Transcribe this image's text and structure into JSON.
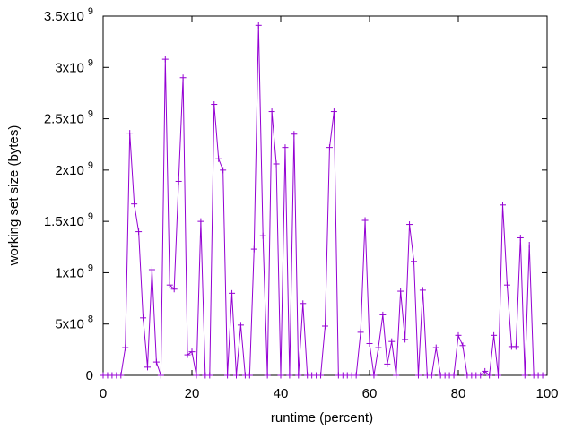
{
  "chart_data": {
    "type": "line",
    "title": "",
    "xlabel": "runtime (percent)",
    "ylabel": "working set size (bytes)",
    "xlim": [
      0,
      100
    ],
    "ylim": [
      0,
      3500000000
    ],
    "grid": false,
    "legend": "none",
    "colors": {
      "series": "#9400d3",
      "axes": "#000000"
    },
    "x_ticks": [
      {
        "value": 0,
        "label": "0"
      },
      {
        "value": 20,
        "label": "20"
      },
      {
        "value": 40,
        "label": "40"
      },
      {
        "value": 60,
        "label": "60"
      },
      {
        "value": 80,
        "label": "80"
      },
      {
        "value": 100,
        "label": "100"
      }
    ],
    "y_ticks": [
      {
        "value": 0,
        "base": "0",
        "exp": ""
      },
      {
        "value": 500000000,
        "base": "5x10",
        "exp": "8"
      },
      {
        "value": 1000000000,
        "base": "1x10",
        "exp": "9"
      },
      {
        "value": 1500000000,
        "base": "1.5x10",
        "exp": "9"
      },
      {
        "value": 2000000000,
        "base": "2x10",
        "exp": "9"
      },
      {
        "value": 2500000000,
        "base": "2.5x10",
        "exp": "9"
      },
      {
        "value": 3000000000,
        "base": "3x10",
        "exp": "9"
      },
      {
        "value": 3500000000,
        "base": "3.5x10",
        "exp": "9"
      }
    ],
    "series": [
      {
        "x": [
          0,
          1,
          2,
          3,
          4,
          5,
          6,
          7,
          8,
          9,
          10,
          11,
          12,
          13,
          14,
          15,
          16,
          17,
          18,
          19,
          20,
          21,
          22,
          23,
          24,
          25,
          26,
          27,
          28,
          29,
          30,
          31,
          32,
          33,
          34,
          35,
          36,
          37,
          38,
          39,
          40,
          41,
          42,
          43,
          44,
          45,
          46,
          47,
          48,
          49,
          50,
          51,
          52,
          53,
          54,
          55,
          56,
          57,
          58,
          59,
          60,
          61,
          62,
          63,
          64,
          65,
          66,
          67,
          68,
          69,
          70,
          71,
          72,
          73,
          74,
          75,
          76,
          77,
          78,
          79,
          80,
          81,
          82,
          83,
          84,
          85,
          86,
          87,
          88,
          89,
          90,
          91,
          92,
          93,
          94,
          95,
          96,
          97,
          98,
          99
        ],
        "values": [
          0,
          0,
          0,
          0,
          0,
          270000000,
          2360000000,
          1670000000,
          1400000000,
          560000000,
          80000000,
          1030000000,
          130000000,
          0,
          3080000000,
          880000000,
          840000000,
          1890000000,
          2900000000,
          200000000,
          230000000,
          0,
          1500000000,
          0,
          0,
          2640000000,
          2110000000,
          2000000000,
          0,
          800000000,
          0,
          490000000,
          0,
          0,
          1230000000,
          3410000000,
          1360000000,
          0,
          2570000000,
          2060000000,
          0,
          2220000000,
          0,
          2350000000,
          0,
          700000000,
          0,
          0,
          0,
          0,
          480000000,
          2220000000,
          2570000000,
          0,
          0,
          0,
          0,
          0,
          420000000,
          1510000000,
          310000000,
          0,
          270000000,
          590000000,
          110000000,
          330000000,
          0,
          820000000,
          350000000,
          1470000000,
          1110000000,
          0,
          830000000,
          0,
          0,
          270000000,
          0,
          0,
          0,
          0,
          390000000,
          290000000,
          0,
          0,
          0,
          0,
          40000000,
          0,
          390000000,
          0,
          1660000000,
          880000000,
          280000000,
          280000000,
          1340000000,
          0,
          1270000000,
          0,
          0,
          0
        ]
      }
    ]
  }
}
